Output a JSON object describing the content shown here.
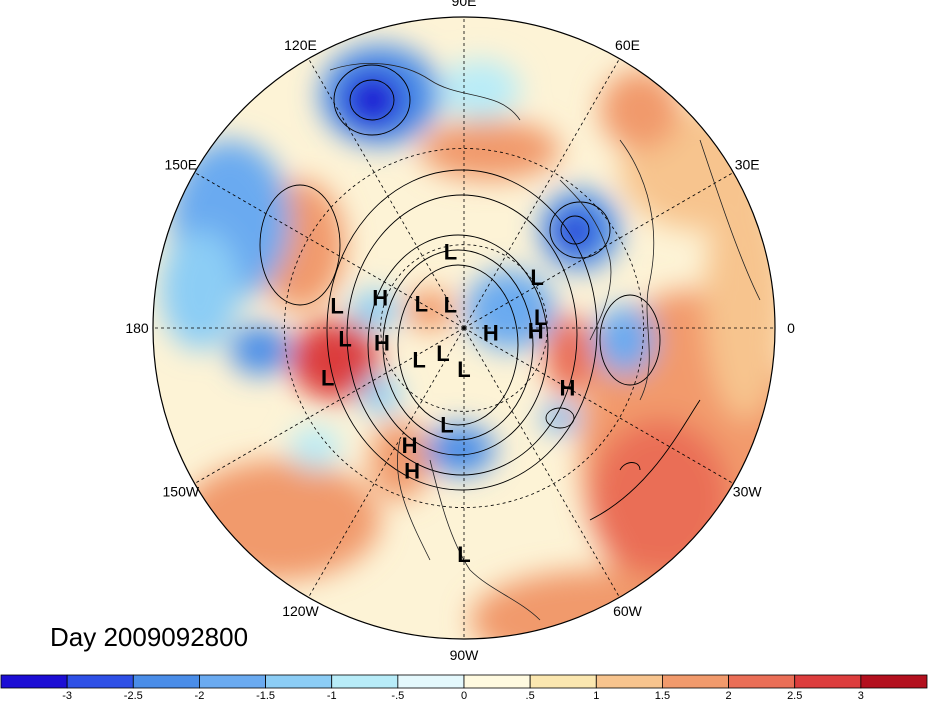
{
  "map": {
    "projection": "north-polar-stereographic",
    "lon_labels": [
      {
        "text": "90E",
        "lon": 90
      },
      {
        "text": "60E",
        "lon": 60
      },
      {
        "text": "30E",
        "lon": 30
      },
      {
        "text": "0",
        "lon": 0
      },
      {
        "text": "30W",
        "lon": -30
      },
      {
        "text": "60W",
        "lon": -60
      },
      {
        "text": "90W",
        "lon": -90
      },
      {
        "text": "120W",
        "lon": -120
      },
      {
        "text": "150W",
        "lon": -150
      },
      {
        "text": "180",
        "lon": 180
      },
      {
        "text": "150E",
        "lon": 150
      },
      {
        "text": "120E",
        "lon": 120
      }
    ],
    "centers": [
      {
        "type": "L",
        "lon": 100,
        "lat": 62
      },
      {
        "type": "L",
        "lon": 35,
        "lat": 58
      },
      {
        "type": "L",
        "lon": 8,
        "lat": 62
      },
      {
        "type": "L",
        "lon": 170,
        "lat": 45
      },
      {
        "type": "L",
        "lon": -175,
        "lat": 48
      },
      {
        "type": "L",
        "lon": -160,
        "lat": 40
      },
      {
        "type": "L",
        "lon": 150,
        "lat": 72
      },
      {
        "type": "L",
        "lon": 120,
        "lat": 80
      },
      {
        "type": "L",
        "lon": -130,
        "lat": 78
      },
      {
        "type": "L",
        "lon": -145,
        "lat": 70
      },
      {
        "type": "L",
        "lon": -90,
        "lat": 75
      },
      {
        "type": "L",
        "lon": -100,
        "lat": 55
      },
      {
        "type": "L",
        "lon": -90,
        "lat": 18
      },
      {
        "type": "H",
        "lon": 160,
        "lat": 58
      },
      {
        "type": "H",
        "lon": -170,
        "lat": 60
      },
      {
        "type": "H",
        "lon": -10,
        "lat": 80
      },
      {
        "type": "H",
        "lon": -2,
        "lat": 64
      },
      {
        "type": "H",
        "lon": -30,
        "lat": 48
      },
      {
        "type": "H",
        "lon": -115,
        "lat": 45
      },
      {
        "type": "H",
        "lon": -110,
        "lat": 38
      }
    ]
  },
  "colorbar": {
    "colors": [
      "#1c0ed4",
      "#2e50e6",
      "#4a8de8",
      "#6aaaf0",
      "#8ccdf5",
      "#b8ecf8",
      "#e4f8fc",
      "#fffae0",
      "#fbe7b0",
      "#f7c48e",
      "#f19a6c",
      "#ea6e56",
      "#dc3d3d",
      "#b3101e"
    ],
    "tick_labels": [
      "-3",
      "-2.5",
      "-2",
      "-1.5",
      "-1",
      "-.5",
      "0",
      ".5",
      "1",
      "1.5",
      "2",
      "2.5",
      "3"
    ]
  },
  "day_label": "Day 2009092800"
}
